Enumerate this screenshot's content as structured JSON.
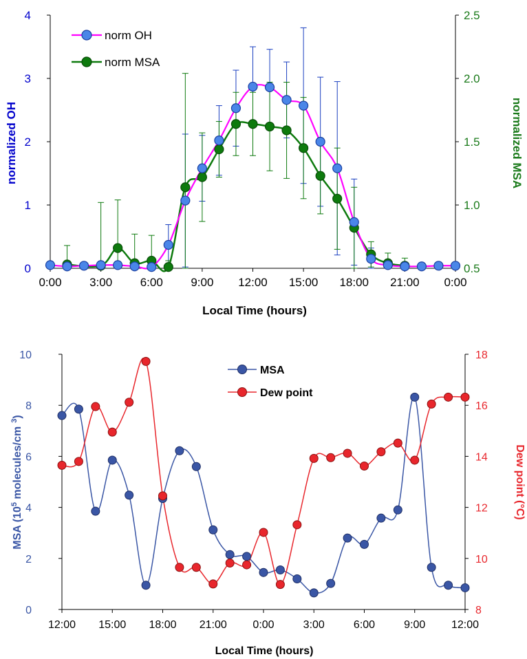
{
  "chart_data": [
    {
      "type": "line",
      "xlabel": "Local Time (hours)",
      "ylabel": "normalized OH",
      "y2label": "normalized MSA",
      "x_tick_labels": [
        "0:00",
        "3:00",
        "6:00",
        "9:00",
        "12:00",
        "15:00",
        "18:00",
        "21:00",
        "0:00"
      ],
      "xlim": [
        0,
        24
      ],
      "ylim": [
        0,
        4
      ],
      "y_ticks": [
        "0",
        "1",
        "2",
        "3",
        "4"
      ],
      "y2lim": [
        0.5,
        2.5
      ],
      "y2_ticks": [
        "0.5",
        "1.0",
        "1.5",
        "2.0",
        "2.5"
      ],
      "legend_position": "top-left",
      "grid": false,
      "colors": {
        "oh_line": "#ff00ff",
        "oh_marker": "#4a86e8",
        "msa": "#0d7a0d",
        "left_axis": "#0000cc",
        "right_axis": "#1a7a1a"
      },
      "series": [
        {
          "name": "norm OH",
          "axis": "left",
          "x": [
            0,
            1,
            2,
            3,
            4,
            5,
            6,
            7,
            8,
            9,
            10,
            11,
            12,
            13,
            14,
            15,
            16,
            17,
            18,
            19,
            20,
            21,
            22,
            23,
            24
          ],
          "y": [
            0.05,
            0.03,
            0.04,
            0.05,
            0.05,
            0.03,
            0.02,
            0.37,
            1.07,
            1.58,
            2.02,
            2.53,
            2.87,
            2.86,
            2.66,
            2.57,
            2.0,
            1.58,
            0.73,
            0.15,
            0.05,
            0.03,
            0.03,
            0.04,
            0.04
          ],
          "err": [
            0.05,
            0.05,
            0.05,
            0.05,
            0.05,
            0.05,
            0.05,
            0.32,
            1.05,
            0.52,
            0.55,
            0.6,
            0.63,
            0.6,
            0.6,
            1.23,
            1.02,
            1.37,
            0.68,
            0.17,
            0.05,
            0.05,
            0.05,
            0.05,
            0.05
          ]
        },
        {
          "name": "norm MSA",
          "axis": "right",
          "x": [
            1,
            3,
            4,
            5,
            6,
            7,
            8,
            9,
            10,
            11,
            12,
            13,
            14,
            15,
            16,
            17,
            18,
            19,
            20,
            21
          ],
          "y": [
            0.53,
            0.52,
            0.66,
            0.54,
            0.56,
            0.51,
            1.14,
            1.22,
            1.44,
            1.64,
            1.64,
            1.62,
            1.59,
            1.45,
            1.23,
            1.05,
            0.82,
            0.61,
            0.54,
            0.52
          ],
          "err": [
            0.15,
            0.5,
            0.38,
            0.23,
            0.2,
            0.05,
            0.9,
            0.35,
            0.22,
            0.25,
            0.25,
            0.35,
            0.38,
            0.4,
            0.3,
            0.4,
            0.32,
            0.1,
            0.08,
            0.06
          ]
        }
      ]
    },
    {
      "type": "line",
      "xlabel": "Local Time (hours)",
      "ylabel_prefix": "MSA (10",
      "ylabel_sup1": "5",
      "ylabel_mid": " molecules/cm",
      "ylabel_sup2": "3",
      "ylabel_suffix": ")",
      "y2label": "Dew point (°C)",
      "x_tick_labels": [
        "12:00",
        "15:00",
        "18:00",
        "21:00",
        "0:00",
        "3:00",
        "6:00",
        "9:00",
        "12:00"
      ],
      "xlim": [
        0,
        24
      ],
      "ylim": [
        0,
        10
      ],
      "y_ticks": [
        "0",
        "2",
        "4",
        "6",
        "8",
        "10"
      ],
      "y2lim": [
        8,
        18
      ],
      "y2_ticks": [
        "8",
        "10",
        "12",
        "14",
        "16",
        "18"
      ],
      "legend_position": "top-center",
      "grid": false,
      "colors": {
        "msa": "#3a56a5",
        "dew": "#e8262c"
      },
      "series": [
        {
          "name": "MSA",
          "axis": "left",
          "x": [
            0,
            1,
            2,
            3,
            4,
            5,
            6,
            7,
            8,
            9,
            10,
            11,
            12,
            13,
            14,
            15,
            16,
            17,
            18,
            19,
            20,
            21,
            22,
            23,
            24
          ],
          "y": [
            7.6,
            7.85,
            3.85,
            5.85,
            4.48,
            0.95,
            4.35,
            6.22,
            5.6,
            3.12,
            2.15,
            2.08,
            1.45,
            1.55,
            1.2,
            0.65,
            1.02,
            2.8,
            2.55,
            3.58,
            3.9,
            8.32,
            1.65,
            0.95,
            0.85
          ]
        },
        {
          "name": "Dew point",
          "axis": "right",
          "x": [
            0,
            1,
            2,
            3,
            4,
            5,
            6,
            7,
            8,
            9,
            10,
            11,
            12,
            13,
            14,
            15,
            16,
            17,
            18,
            19,
            20,
            21,
            22,
            23,
            24
          ],
          "y": [
            13.65,
            13.8,
            15.95,
            14.95,
            16.12,
            17.72,
            12.45,
            9.65,
            9.65,
            9.0,
            9.82,
            9.75,
            11.02,
            8.98,
            11.32,
            13.92,
            13.95,
            14.12,
            13.62,
            14.18,
            14.52,
            13.85,
            16.05,
            16.32,
            16.32
          ]
        }
      ]
    }
  ]
}
